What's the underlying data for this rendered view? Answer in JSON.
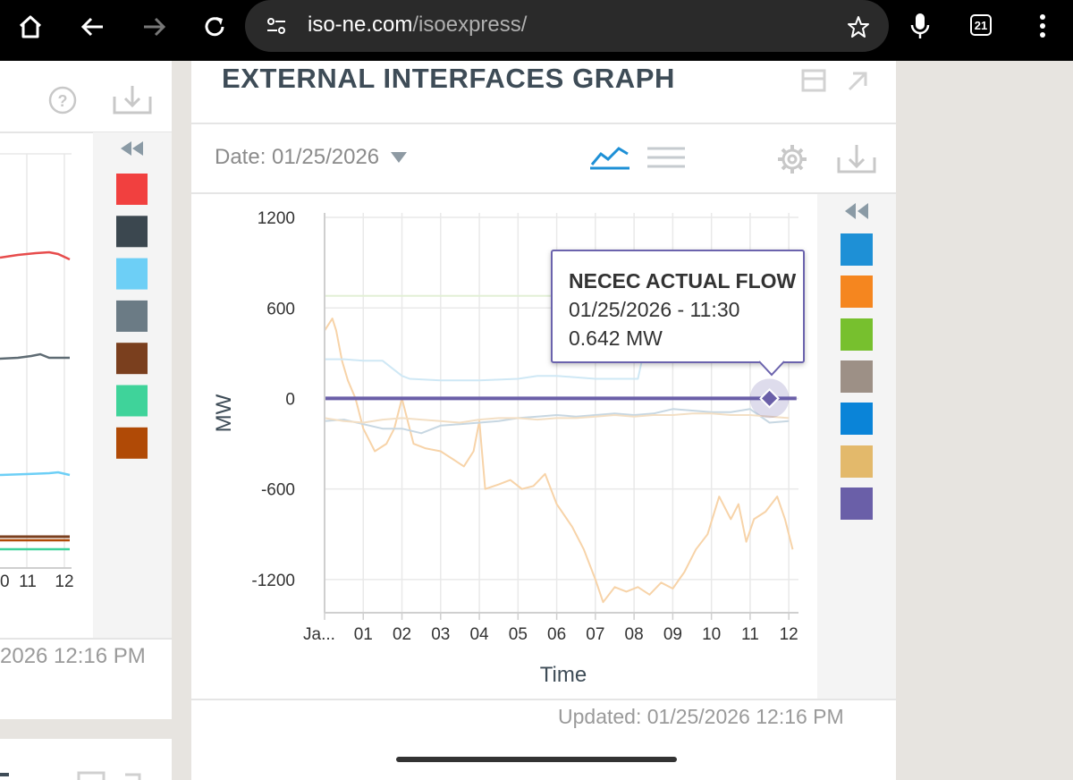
{
  "browser": {
    "url_host": "iso-ne.com",
    "url_path": "/isoexpress/",
    "tab_count": "21"
  },
  "left_panel": {
    "x_ticks": [
      "0",
      "11",
      "12"
    ],
    "updated": "2026 12:16 PM",
    "legend_colors": [
      "#f1403f",
      "#3b474f",
      "#6dcff6",
      "#6b7b85",
      "#7a3f1e",
      "#3fd39a",
      "#b04a06"
    ]
  },
  "graph": {
    "title": "EXTERNAL INTERFACES GRAPH",
    "date_label": "Date: 01/25/2026",
    "updated": "Updated: 01/25/2026 12:16 PM",
    "legend_colors": [
      "#1e90d6",
      "#f5861f",
      "#77c02e",
      "#9d9086",
      "#0a84d8",
      "#e3b96b",
      "#6a5fa8"
    ],
    "tooltip": {
      "title": "NECEC ACTUAL FLOW",
      "datetime": "01/25/2026 - 11:30",
      "value": "0.642 MW"
    }
  },
  "chart_data": {
    "type": "line",
    "xlabel": "Time",
    "ylabel": "MW",
    "categories": [
      "Ja...",
      "01",
      "02",
      "03",
      "04",
      "05",
      "06",
      "07",
      "08",
      "09",
      "10",
      "11",
      "12"
    ],
    "x_hours": [
      0,
      1,
      2,
      3,
      4,
      5,
      6,
      7,
      8,
      9,
      10,
      11,
      12
    ],
    "yticks": [
      1200,
      600,
      0,
      -600,
      -1200
    ],
    "ylim": [
      -1420,
      1230
    ],
    "xlim": [
      0,
      12.25
    ],
    "series": [
      {
        "color": "#f7d3a8",
        "x": [
          0,
          0.2,
          0.3,
          0.45,
          0.6,
          0.8,
          1.0,
          1.3,
          1.6,
          1.8,
          2.0,
          2.3,
          2.6,
          3.0,
          3.3,
          3.6,
          3.85,
          4.0,
          4.15,
          4.5,
          4.8,
          5.1,
          5.4,
          5.7,
          6.0,
          6.4,
          6.7,
          7.0,
          7.2,
          7.5,
          7.8,
          8.1,
          8.4,
          8.7,
          9.0,
          9.3,
          9.6,
          9.9,
          10.2,
          10.5,
          10.7,
          10.9,
          11.1,
          11.4,
          11.7,
          11.9,
          12.1
        ],
        "y": [
          450,
          530,
          450,
          250,
          120,
          0,
          -200,
          -350,
          -300,
          -200,
          0,
          -300,
          -330,
          -350,
          -400,
          -450,
          -350,
          -150,
          -600,
          -570,
          -540,
          -600,
          -580,
          -500,
          -700,
          -850,
          -1000,
          -1200,
          -1350,
          -1250,
          -1280,
          -1250,
          -1300,
          -1220,
          -1260,
          -1150,
          -1000,
          -900,
          -650,
          -800,
          -700,
          -950,
          -800,
          -750,
          -650,
          -800,
          -1000
        ]
      },
      {
        "color": "#cfe8f5",
        "x": [
          0,
          0.5,
          1,
          1.5,
          2.0,
          2.2,
          3,
          4,
          5,
          5.5,
          6,
          7,
          8.1,
          8.2,
          9,
          10,
          11,
          12
        ],
        "y": [
          260,
          260,
          250,
          250,
          150,
          130,
          120,
          120,
          130,
          150,
          150,
          130,
          130,
          250,
          260,
          250,
          240,
          240
        ]
      },
      {
        "color": "#e2f0d5",
        "x": [
          0,
          12
        ],
        "y": [
          680,
          680
        ]
      },
      {
        "color": "#c7d7e2",
        "x": [
          0,
          0.5,
          1,
          1.5,
          2,
          2.5,
          3,
          3.5,
          4,
          4.5,
          5,
          5.5,
          6,
          6.5,
          7,
          7.5,
          8,
          8.5,
          9,
          9.5,
          10,
          10.5,
          11,
          11.5,
          12
        ],
        "y": [
          -150,
          -140,
          -170,
          -200,
          -200,
          -230,
          -180,
          -170,
          -160,
          -150,
          -130,
          -120,
          -110,
          -120,
          -110,
          -100,
          -110,
          -100,
          -70,
          -80,
          -90,
          -90,
          -70,
          -160,
          -150
        ]
      },
      {
        "color": "#f3dfc4",
        "x": [
          0,
          0.5,
          1,
          1.5,
          2,
          2.5,
          3,
          3.5,
          4,
          4.5,
          5,
          5.5,
          6,
          6.5,
          7,
          7.5,
          8,
          8.5,
          9,
          9.5,
          10,
          10.5,
          11,
          11.5,
          12
        ],
        "y": [
          -130,
          -150,
          -160,
          -140,
          -130,
          -140,
          -150,
          -160,
          -140,
          -130,
          -130,
          -140,
          -130,
          -130,
          -120,
          -110,
          -120,
          -110,
          -110,
          -100,
          -100,
          -110,
          -110,
          -120,
          -130
        ]
      },
      {
        "name": "NECEC ACTUAL FLOW",
        "color": "#6a5fa8",
        "x": [
          0,
          12.2
        ],
        "y": [
          0.642,
          0.642
        ]
      }
    ],
    "highlight": {
      "x": 11.5,
      "y": 0.642
    }
  },
  "icons": {
    "home": "home-icon",
    "back": "back-arrow-icon",
    "forward": "forward-arrow-icon",
    "reload": "reload-icon",
    "site_settings": "site-settings-icon",
    "star": "star-icon",
    "mic": "microphone-icon",
    "menu": "kebab-menu-icon"
  }
}
